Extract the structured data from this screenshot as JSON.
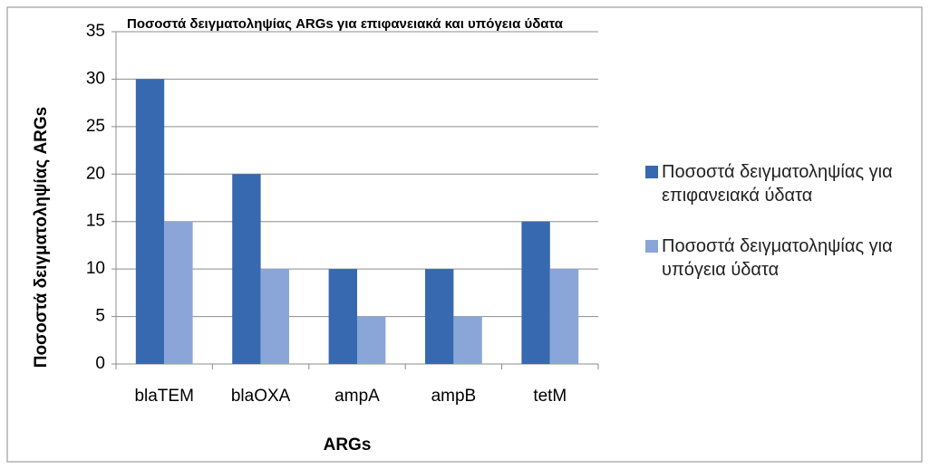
{
  "chart_data": {
    "type": "bar",
    "title": "Ποσοστά δειγματοληψίας ARGs για επιφανειακά και υπόγεια ύδατα",
    "x_label": "ARGs",
    "y_label": "Ποσοστά δειγματοληψίας ARGs",
    "categories": [
      "blaTEM",
      "blaOXA",
      "ampA",
      "ampB",
      "tetM"
    ],
    "series": [
      {
        "name": "Ποσοστά δειγματοληψίας για επιφανειακά ύδατα",
        "color": "#3669b0",
        "values": [
          30,
          20,
          10,
          10,
          15
        ]
      },
      {
        "name": "Ποσοστά δειγματοληψίας για υπόγεια ύδατα",
        "color": "#8aa6d8",
        "values": [
          15,
          10,
          5,
          5,
          10
        ]
      }
    ],
    "ylim": [
      0,
      35
    ],
    "yticks": [
      0,
      5,
      10,
      15,
      20,
      25,
      30,
      35
    ],
    "grid": true,
    "legend": "right"
  }
}
